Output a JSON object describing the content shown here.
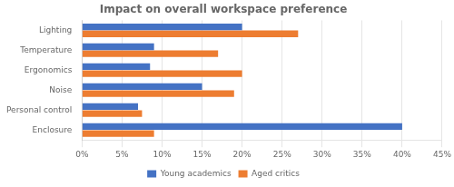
{
  "chart_data": {
    "type": "bar",
    "orientation": "horizontal",
    "title": "Impact on overall workspace preference",
    "categories": [
      "Lighting",
      "Temperature",
      "Ergonomics",
      "Noise",
      "Personal control",
      "Enclosure"
    ],
    "series": [
      {
        "name": "Young academics",
        "color": "#4472C4",
        "values": [
          0.2,
          0.09,
          0.085,
          0.15,
          0.07,
          0.4
        ]
      },
      {
        "name": "Aged critics",
        "color": "#ED7D31",
        "values": [
          0.27,
          0.17,
          0.2,
          0.19,
          0.075,
          0.09
        ]
      }
    ],
    "xlim": [
      0,
      0.45
    ],
    "xticks": [
      {
        "value": 0,
        "label": "0%"
      },
      {
        "value": 0.05,
        "label": "5%"
      },
      {
        "value": 0.1,
        "label": "10%"
      },
      {
        "value": 0.15,
        "label": "15%"
      },
      {
        "value": 0.2,
        "label": "20%"
      },
      {
        "value": 0.25,
        "label": "25%"
      },
      {
        "value": 0.3,
        "label": "30%"
      },
      {
        "value": 0.35,
        "label": "35%"
      },
      {
        "value": 0.4,
        "label": "40%"
      },
      {
        "value": 0.45,
        "label": "45%"
      }
    ],
    "grid": true,
    "legend": "bottom"
  }
}
